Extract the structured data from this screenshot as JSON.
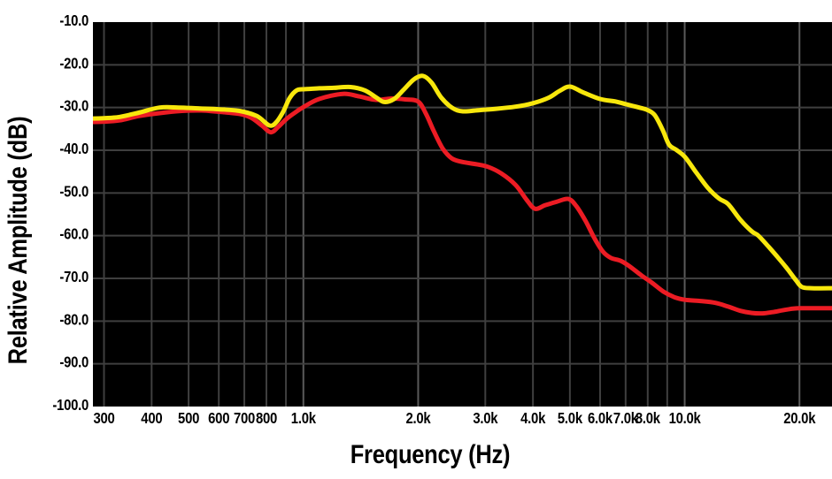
{
  "page": {
    "background_color": "#ffffff"
  },
  "chart_data": {
    "type": "line",
    "title": "",
    "xlabel": "Frequency (Hz)",
    "ylabel": "Relative Amplitude (dB)",
    "legend": "none",
    "grid": {
      "plot_background": "#000000",
      "line_color": "#3f3f3f",
      "bright_line_color": "#5a5a5a"
    },
    "x_axis": {
      "scale": "log",
      "unit": "Hz",
      "range_hz": [
        277,
        24300
      ],
      "gridlines_hz": [
        300,
        400,
        500,
        600,
        700,
        800,
        900,
        1000,
        2000,
        3000,
        4000,
        5000,
        6000,
        7000,
        8000,
        9000,
        10000,
        20000
      ],
      "bright_gridlines_hz": [
        1000,
        2000,
        10000,
        20000
      ],
      "ticks": [
        {
          "hz": 300,
          "label": "300"
        },
        {
          "hz": 400,
          "label": "400"
        },
        {
          "hz": 500,
          "label": "500"
        },
        {
          "hz": 600,
          "label": "600"
        },
        {
          "hz": 700,
          "label": "700"
        },
        {
          "hz": 800,
          "label": "800"
        },
        {
          "hz": 1000,
          "label": "1.0k"
        },
        {
          "hz": 2000,
          "label": "2.0k"
        },
        {
          "hz": 3000,
          "label": "3.0k"
        },
        {
          "hz": 4000,
          "label": "4.0k"
        },
        {
          "hz": 5000,
          "label": "5.0k"
        },
        {
          "hz": 6000,
          "label": "6.0k"
        },
        {
          "hz": 7000,
          "label": "7.0k"
        },
        {
          "hz": 8000,
          "label": "8.0k"
        },
        {
          "hz": 10000,
          "label": "10.0k"
        },
        {
          "hz": 20000,
          "label": "20.0k"
        }
      ]
    },
    "y_axis": {
      "unit": "dB",
      "range_db": [
        -100,
        -10
      ],
      "gridlines_db": [
        -20,
        -30,
        -40,
        -50,
        -60,
        -70,
        -80,
        -90
      ],
      "ticks": [
        {
          "db": -10,
          "label": "-10.0"
        },
        {
          "db": -20,
          "label": "-20.0"
        },
        {
          "db": -30,
          "label": "-30.0"
        },
        {
          "db": -40,
          "label": "-40.0"
        },
        {
          "db": -50,
          "label": "-50.0"
        },
        {
          "db": -60,
          "label": "-60.0"
        },
        {
          "db": -70,
          "label": "-70.0"
        },
        {
          "db": -80,
          "label": "-80.0"
        },
        {
          "db": -90,
          "label": "-90.0"
        },
        {
          "db": -100,
          "label": "-100.0"
        }
      ]
    },
    "series": [
      {
        "name": "red-trace",
        "color": "#ec1c24",
        "stroke_width": 5,
        "points_hz_db": [
          [
            276,
            -33.4
          ],
          [
            300,
            -33.3
          ],
          [
            330,
            -33.0
          ],
          [
            370,
            -32.0
          ],
          [
            420,
            -31.3
          ],
          [
            480,
            -30.8
          ],
          [
            540,
            -30.7
          ],
          [
            600,
            -31.0
          ],
          [
            680,
            -31.5
          ],
          [
            730,
            -32.4
          ],
          [
            780,
            -34.3
          ],
          [
            822,
            -35.8
          ],
          [
            860,
            -34.5
          ],
          [
            900,
            -32.8
          ],
          [
            950,
            -31.2
          ],
          [
            1000,
            -29.9
          ],
          [
            1100,
            -28.0
          ],
          [
            1270,
            -26.8
          ],
          [
            1400,
            -27.4
          ],
          [
            1550,
            -28.2
          ],
          [
            1700,
            -27.9
          ],
          [
            1850,
            -28.1
          ],
          [
            2000,
            -28.6
          ],
          [
            2100,
            -31.6
          ],
          [
            2200,
            -35.6
          ],
          [
            2320,
            -39.6
          ],
          [
            2450,
            -41.9
          ],
          [
            2600,
            -42.7
          ],
          [
            2850,
            -43.3
          ],
          [
            3050,
            -43.9
          ],
          [
            3300,
            -45.4
          ],
          [
            3600,
            -48.1
          ],
          [
            3850,
            -51.6
          ],
          [
            4050,
            -53.7
          ],
          [
            4300,
            -52.9
          ],
          [
            4600,
            -52.1
          ],
          [
            4950,
            -51.4
          ],
          [
            5200,
            -53.1
          ],
          [
            5500,
            -56.6
          ],
          [
            5800,
            -60.6
          ],
          [
            6100,
            -63.7
          ],
          [
            6400,
            -65.2
          ],
          [
            6800,
            -65.9
          ],
          [
            7200,
            -67.3
          ],
          [
            7700,
            -69.3
          ],
          [
            8200,
            -71.0
          ],
          [
            8800,
            -73.1
          ],
          [
            9400,
            -74.4
          ],
          [
            10000,
            -75.0
          ],
          [
            11000,
            -75.3
          ],
          [
            12000,
            -75.7
          ],
          [
            13000,
            -76.6
          ],
          [
            14000,
            -77.6
          ],
          [
            15000,
            -78.1
          ],
          [
            16000,
            -78.2
          ],
          [
            17000,
            -77.9
          ],
          [
            18500,
            -77.3
          ],
          [
            20000,
            -77.0
          ],
          [
            24500,
            -77.0
          ]
        ]
      },
      {
        "name": "yellow-trace",
        "color": "#f8e70c",
        "stroke_width": 5,
        "points_hz_db": [
          [
            276,
            -32.6
          ],
          [
            300,
            -32.5
          ],
          [
            330,
            -32.2
          ],
          [
            370,
            -31.2
          ],
          [
            420,
            -30.0
          ],
          [
            470,
            -30.0
          ],
          [
            530,
            -30.2
          ],
          [
            600,
            -30.4
          ],
          [
            680,
            -30.8
          ],
          [
            755,
            -32.0
          ],
          [
            815,
            -34.2
          ],
          [
            850,
            -33.4
          ],
          [
            885,
            -31.0
          ],
          [
            920,
            -27.8
          ],
          [
            960,
            -26.0
          ],
          [
            1010,
            -25.7
          ],
          [
            1100,
            -25.5
          ],
          [
            1200,
            -25.4
          ],
          [
            1330,
            -25.2
          ],
          [
            1450,
            -26.0
          ],
          [
            1550,
            -27.6
          ],
          [
            1630,
            -28.7
          ],
          [
            1730,
            -28.0
          ],
          [
            1830,
            -25.9
          ],
          [
            1950,
            -23.4
          ],
          [
            2060,
            -22.6
          ],
          [
            2170,
            -24.2
          ],
          [
            2300,
            -27.7
          ],
          [
            2460,
            -30.1
          ],
          [
            2620,
            -30.9
          ],
          [
            2900,
            -30.6
          ],
          [
            3200,
            -30.3
          ],
          [
            3600,
            -29.8
          ],
          [
            4000,
            -29.0
          ],
          [
            4400,
            -27.7
          ],
          [
            4700,
            -26.1
          ],
          [
            5000,
            -25.1
          ],
          [
            5400,
            -26.4
          ],
          [
            6000,
            -28.0
          ],
          [
            6600,
            -28.6
          ],
          [
            7000,
            -29.2
          ],
          [
            7600,
            -30.0
          ],
          [
            8000,
            -30.6
          ],
          [
            8350,
            -31.8
          ],
          [
            8750,
            -35.2
          ],
          [
            9100,
            -38.7
          ],
          [
            9500,
            -39.9
          ],
          [
            10000,
            -41.5
          ],
          [
            10700,
            -45.1
          ],
          [
            11500,
            -48.8
          ],
          [
            12300,
            -51.3
          ],
          [
            13000,
            -52.6
          ],
          [
            14000,
            -56.3
          ],
          [
            15000,
            -59.0
          ],
          [
            15600,
            -60.0
          ],
          [
            16600,
            -62.6
          ],
          [
            17600,
            -65.2
          ],
          [
            18600,
            -67.8
          ],
          [
            19600,
            -70.5
          ],
          [
            20300,
            -72.0
          ],
          [
            21500,
            -72.3
          ],
          [
            24500,
            -72.3
          ]
        ]
      }
    ]
  }
}
